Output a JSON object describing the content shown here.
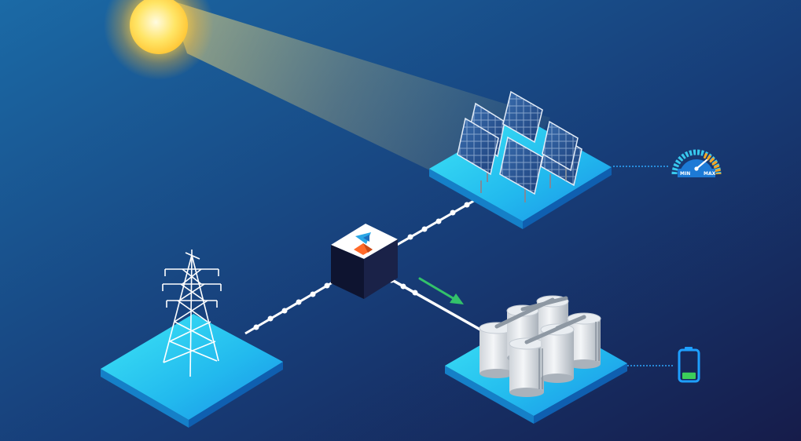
{
  "colors": {
    "background_top_left": "#1b6aa6",
    "background_bottom_right": "#161c4a",
    "platform_top": "#2fd3f0",
    "platform_side": "#1580c8",
    "connector_line": "#ffffff",
    "flow_arrow": "#33c26a",
    "sun": "#ffd84a",
    "battery_outline": "#1e9fff",
    "battery_level": "#3ccf5a",
    "gauge_low": "#38c9ee",
    "gauge_high": "#f5a623"
  },
  "nodes": {
    "sun": {
      "icon": "sun-icon"
    },
    "solar_farm": {
      "icon": "solar-panel-array"
    },
    "controller": {
      "icon": "controller-cube-logo"
    },
    "transmission_tower": {
      "icon": "transmission-tower-icon"
    },
    "storage_tanks": {
      "icon": "storage-tanks-icon"
    }
  },
  "gauge": {
    "icon": "speedometer-icon",
    "min_label": "MIN",
    "max_label": "MAX"
  },
  "battery": {
    "icon": "battery-icon",
    "charge_level": 0.25
  },
  "flow": {
    "direction": "controller-to-storage",
    "icon": "arrow-right-icon"
  }
}
